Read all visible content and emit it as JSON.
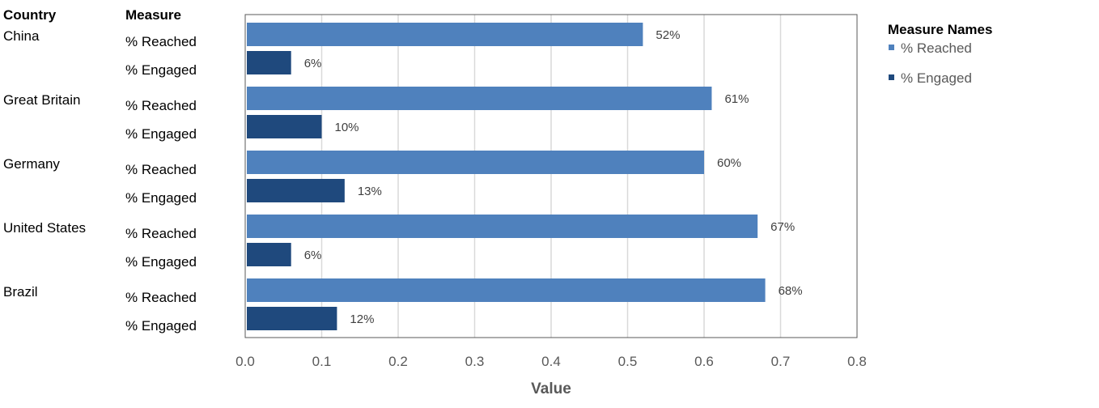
{
  "headers": {
    "country": "Country",
    "measure": "Measure"
  },
  "legend": {
    "title": "Measure Names",
    "items": [
      {
        "label": "% Reached",
        "color": "#4F81BD"
      },
      {
        "label": "% Engaged",
        "color": "#1F497D"
      }
    ]
  },
  "chart_data": {
    "type": "bar",
    "orientation": "horizontal",
    "categories": [
      "China",
      "Great Britain",
      "Germany",
      "United States",
      "Brazil"
    ],
    "series": [
      {
        "name": "% Reached",
        "color": "#4F81BD",
        "values": [
          0.52,
          0.61,
          0.6,
          0.67,
          0.68
        ],
        "labels": [
          "52%",
          "61%",
          "60%",
          "67%",
          "68%"
        ]
      },
      {
        "name": "% Engaged",
        "color": "#1F497D",
        "values": [
          0.06,
          0.1,
          0.13,
          0.06,
          0.12
        ],
        "labels": [
          "6%",
          "10%",
          "13%",
          "6%",
          "12%"
        ]
      }
    ],
    "xlabel": "Value",
    "xlim": [
      0,
      0.8
    ],
    "xticks": [
      "0.0",
      "0.1",
      "0.2",
      "0.3",
      "0.4",
      "0.5",
      "0.6",
      "0.7",
      "0.8"
    ],
    "grid": true,
    "legend_position": "right"
  }
}
